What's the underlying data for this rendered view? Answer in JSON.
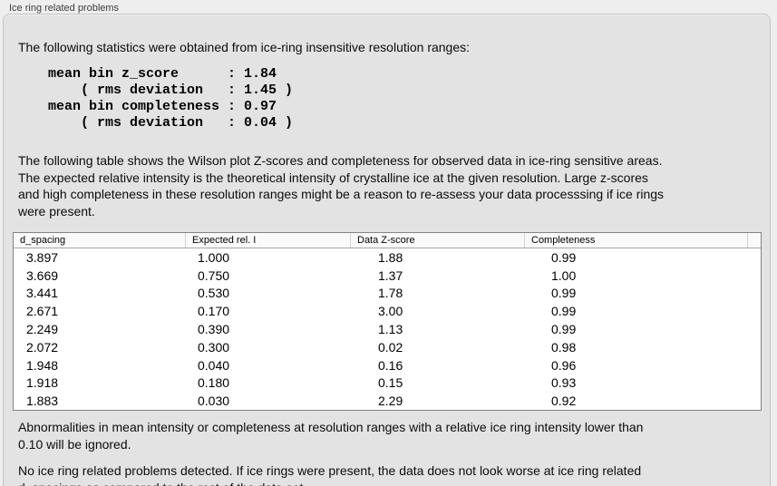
{
  "group": {
    "title": "Ice ring related problems"
  },
  "panel": {
    "intro": "The following statistics were obtained from ice-ring insensitive resolution ranges:",
    "stats": [
      "mean bin z_score      : 1.84",
      "    ( rms deviation   : 1.45 )",
      "mean bin completeness : 0.97",
      "    ( rms deviation   : 0.04 )"
    ],
    "stats_values": {
      "mean_bin_z_score": "1.84",
      "z_score_rms_deviation": "1.45",
      "mean_bin_completeness": "0.97",
      "completeness_rms_deviation": "0.04"
    },
    "description": [
      "The following table shows the Wilson plot Z-scores and completeness for observed data in ice-ring sensitive areas.",
      "The expected relative intensity is the theoretical intensity of crystalline ice at the given resolution. Large z-scores",
      "and high completeness in these resolution ranges might be a reason to re-assess your data processsing if ice rings",
      "were present."
    ],
    "table": {
      "columns": [
        "d_spacing",
        "Expected rel. I",
        "Data Z-score",
        "Completeness"
      ],
      "rows": [
        [
          "3.897",
          "1.000",
          "1.88",
          "0.99"
        ],
        [
          "3.669",
          "0.750",
          "1.37",
          "1.00"
        ],
        [
          "3.441",
          "0.530",
          "1.78",
          "0.99"
        ],
        [
          "2.671",
          "0.170",
          "3.00",
          "0.99"
        ],
        [
          "2.249",
          "0.390",
          "1.13",
          "0.99"
        ],
        [
          "2.072",
          "0.300",
          "0.02",
          "0.98"
        ],
        [
          "1.948",
          "0.040",
          "0.16",
          "0.96"
        ],
        [
          "1.918",
          "0.180",
          "0.15",
          "0.93"
        ],
        [
          "1.883",
          "0.030",
          "2.29",
          "0.92"
        ]
      ]
    },
    "ignore_note": [
      "Abnormalities in mean intensity or completeness at resolution ranges with a relative ice ring intensity lower than",
      "0.10 will be ignored."
    ],
    "conclusion": [
      "No ice ring related problems detected. If ice rings were present, the data does not look worse at ice ring related",
      "d_spacings as compared to the rest of the data set."
    ]
  },
  "colors": {
    "window_bg": "#eeeeee",
    "panel_bg": "#e3e3e3",
    "table_bg": "#ffffff",
    "table_header_bg": "#fafafa",
    "table_border": "#848484"
  }
}
